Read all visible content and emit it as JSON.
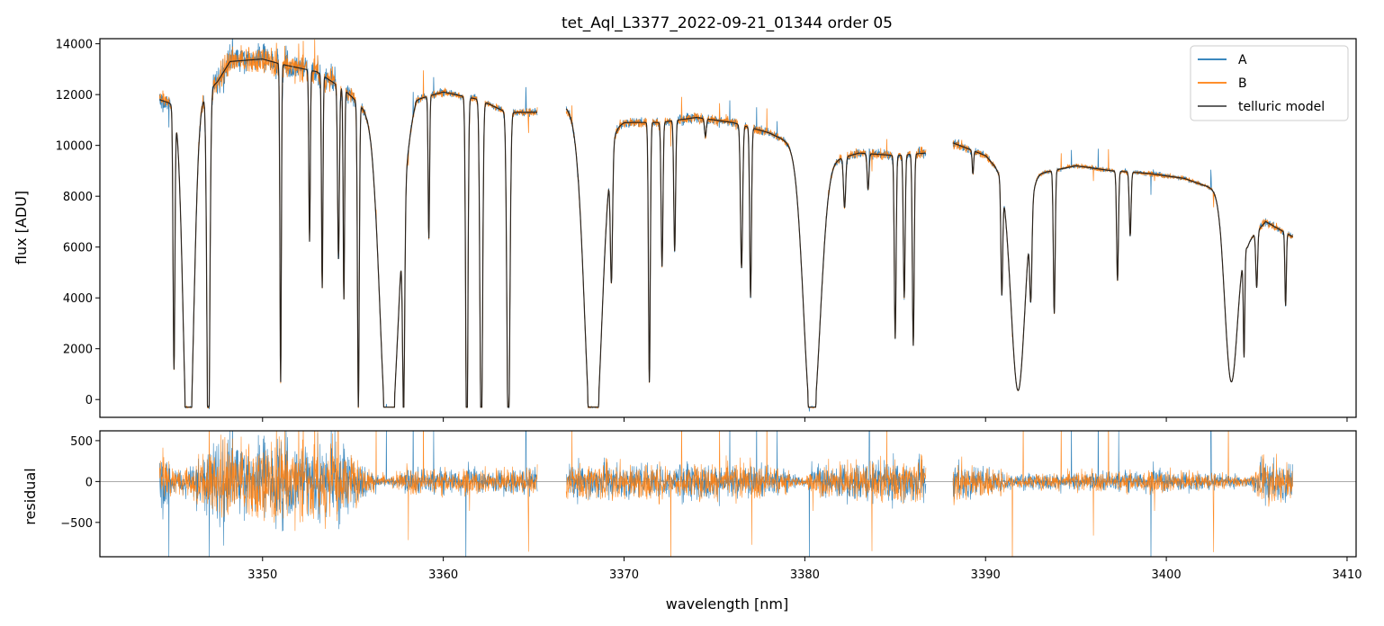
{
  "chart_data": [
    {
      "type": "line",
      "title": "tet_Aql_L3377_2022-09-21_01344  order 05",
      "xlabel": "",
      "ylabel": "flux [ADU]",
      "xlim": [
        3341,
        3410.5
      ],
      "ylim": [
        -700,
        14200
      ],
      "yticks": [
        0,
        2000,
        4000,
        6000,
        8000,
        10000,
        12000,
        14000
      ],
      "xticks": [
        3350,
        3360,
        3370,
        3380,
        3390,
        3400,
        3410
      ],
      "legend": "top-right",
      "colors": {
        "A": "#1f77b4",
        "B": "#ff7f0e",
        "telluric model": "#000000"
      },
      "series": [
        {
          "name": "A"
        },
        {
          "name": "B"
        },
        {
          "name": "telluric model"
        }
      ],
      "segments": [
        {
          "x_start": 3344.3,
          "x_end": 3365.2
        },
        {
          "x_start": 3366.8,
          "x_end": 3386.7
        },
        {
          "x_start": 3388.2,
          "x_end": 3407.0
        }
      ],
      "continuum_points": [
        [
          3344.3,
          11800
        ],
        [
          3346.0,
          11400
        ],
        [
          3347.5,
          12500
        ],
        [
          3348.2,
          13300
        ],
        [
          3350.0,
          13400
        ],
        [
          3351.0,
          13200
        ],
        [
          3353.0,
          12900
        ],
        [
          3354.5,
          12200
        ],
        [
          3356.0,
          11200
        ],
        [
          3357.5,
          9000
        ],
        [
          3358.5,
          11800
        ],
        [
          3360.0,
          12100
        ],
        [
          3362.0,
          11800
        ],
        [
          3363.5,
          11300
        ],
        [
          3365.2,
          11300
        ],
        [
          3366.8,
          11500
        ],
        [
          3368.5,
          10400
        ],
        [
          3370.0,
          10900
        ],
        [
          3372.0,
          10900
        ],
        [
          3374.0,
          11100
        ],
        [
          3376.0,
          10900
        ],
        [
          3378.0,
          10500
        ],
        [
          3379.5,
          10000
        ],
        [
          3381.0,
          9300
        ],
        [
          3383.0,
          9700
        ],
        [
          3385.0,
          9600
        ],
        [
          3386.7,
          9700
        ],
        [
          3388.2,
          10100
        ],
        [
          3390.0,
          9600
        ],
        [
          3391.5,
          8400
        ],
        [
          3393.0,
          8900
        ],
        [
          3395.0,
          9200
        ],
        [
          3397.0,
          9000
        ],
        [
          3399.0,
          8900
        ],
        [
          3401.0,
          8700
        ],
        [
          3403.0,
          8200
        ],
        [
          3404.5,
          6200
        ],
        [
          3405.5,
          7000
        ],
        [
          3407.0,
          6400
        ]
      ],
      "absorption_lines": [
        [
          3345.1,
          8600,
          0.05
        ],
        [
          3345.9,
          12500,
          0.28
        ],
        [
          3347.0,
          11600,
          0.08
        ],
        [
          3351.0,
          9100,
          0.04
        ],
        [
          3352.6,
          5000,
          0.04
        ],
        [
          3353.3,
          6300,
          0.04
        ],
        [
          3354.2,
          5300,
          0.05
        ],
        [
          3354.5,
          6500,
          0.04
        ],
        [
          3355.3,
          9800,
          0.05
        ],
        [
          3357.0,
          12000,
          0.45
        ],
        [
          3357.8,
          10000,
          0.06
        ],
        [
          3359.2,
          4500,
          0.04
        ],
        [
          3361.3,
          11600,
          0.06
        ],
        [
          3362.1,
          11500,
          0.07
        ],
        [
          3363.6,
          11400,
          0.08
        ],
        [
          3368.3,
          11800,
          0.45
        ],
        [
          3369.3,
          5000,
          0.06
        ],
        [
          3371.4,
          9000,
          0.05
        ],
        [
          3372.1,
          5000,
          0.05
        ],
        [
          3372.8,
          4500,
          0.05
        ],
        [
          3374.5,
          600,
          0.05
        ],
        [
          3376.5,
          5000,
          0.06
        ],
        [
          3377.0,
          6000,
          0.05
        ],
        [
          3380.4,
          10600,
          0.45
        ],
        [
          3382.2,
          2000,
          0.06
        ],
        [
          3383.5,
          1400,
          0.05
        ],
        [
          3385.0,
          7200,
          0.05
        ],
        [
          3385.5,
          5600,
          0.05
        ],
        [
          3386.0,
          7500,
          0.05
        ],
        [
          3389.3,
          900,
          0.04
        ],
        [
          3390.9,
          4900,
          0.05
        ],
        [
          3391.8,
          9200,
          0.38
        ],
        [
          3392.5,
          4500,
          0.06
        ],
        [
          3393.8,
          6000,
          0.05
        ],
        [
          3397.3,
          4600,
          0.05
        ],
        [
          3398.0,
          2700,
          0.05
        ],
        [
          3403.6,
          8700,
          0.35
        ],
        [
          3404.3,
          6800,
          0.04
        ],
        [
          3405.0,
          3200,
          0.05
        ],
        [
          3406.6,
          4200,
          0.04
        ]
      ]
    },
    {
      "type": "line",
      "title": "",
      "xlabel": "wavelength [nm]",
      "ylabel": "residual",
      "xlim": [
        3341,
        3410.5
      ],
      "ylim": [
        -920,
        620
      ],
      "yticks": [
        -500,
        0,
        500
      ],
      "xticks": [
        3350,
        3360,
        3370,
        3380,
        3390,
        3400,
        3410
      ],
      "zero_line": true,
      "series": [
        {
          "name": "A"
        },
        {
          "name": "B"
        }
      ],
      "noise_envelope": [
        [
          3344.3,
          500
        ],
        [
          3345.0,
          150
        ],
        [
          3346.0,
          200
        ],
        [
          3347.5,
          550
        ],
        [
          3354.0,
          550
        ],
        [
          3356.0,
          150
        ],
        [
          3357.0,
          50
        ],
        [
          3358.0,
          180
        ],
        [
          3363.0,
          170
        ],
        [
          3365.2,
          180
        ],
        [
          3366.8,
          220
        ],
        [
          3370.0,
          250
        ],
        [
          3378.0,
          230
        ],
        [
          3380.0,
          60
        ],
        [
          3381.0,
          250
        ],
        [
          3386.7,
          280
        ],
        [
          3388.2,
          300
        ],
        [
          3390.0,
          200
        ],
        [
          3391.0,
          150
        ],
        [
          3392.0,
          100
        ],
        [
          3400.0,
          160
        ],
        [
          3403.0,
          100
        ],
        [
          3404.5,
          60
        ],
        [
          3405.5,
          320
        ],
        [
          3407.0,
          280
        ]
      ]
    }
  ]
}
